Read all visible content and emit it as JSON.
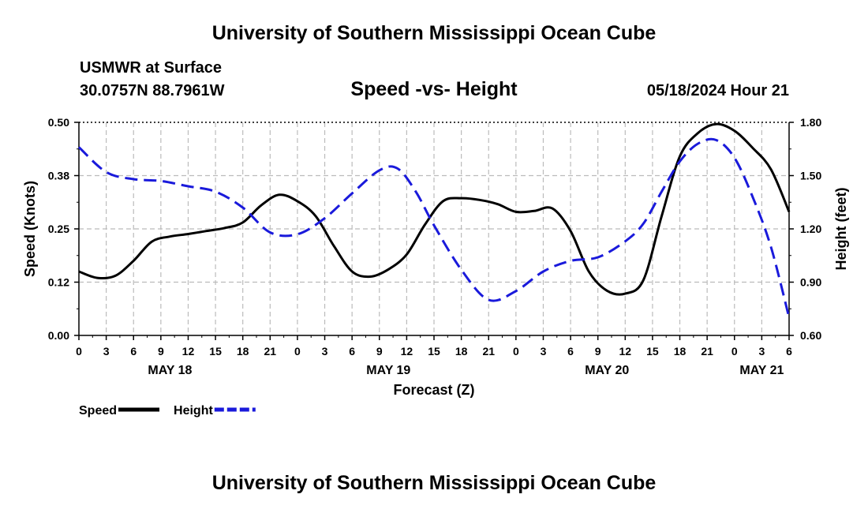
{
  "header": {
    "title": "University of Southern Mississippi Ocean Cube",
    "station_name": "USMWR at Surface",
    "station_coords": "30.0757N  88.7961W",
    "chart_title": "Speed -vs- Height",
    "timestamp": "05/18/2024 Hour 21"
  },
  "footer": {
    "title": "University of Southern Mississippi Ocean Cube"
  },
  "chart_data": {
    "type": "line",
    "title": "Speed -vs- Height",
    "xlabel": "Forecast (Z)",
    "x_hours": [
      0,
      3,
      6,
      9,
      12,
      15,
      18,
      21,
      24,
      27,
      30,
      33,
      36,
      39,
      42,
      45,
      48,
      51,
      54,
      57,
      60,
      63,
      66,
      69,
      72,
      75,
      78
    ],
    "x_tick_labels": [
      "0",
      "3",
      "6",
      "9",
      "12",
      "15",
      "18",
      "21",
      "0",
      "3",
      "6",
      "9",
      "12",
      "15",
      "18",
      "21",
      "0",
      "3",
      "6",
      "9",
      "12",
      "15",
      "18",
      "21",
      "0",
      "3",
      "6"
    ],
    "xlim": [
      0,
      78
    ],
    "date_labels": [
      {
        "text": "MAY 18",
        "hour": 10
      },
      {
        "text": "MAY 19",
        "hour": 34
      },
      {
        "text": "MAY 20",
        "hour": 58
      },
      {
        "text": "MAY 21",
        "hour": 75
      }
    ],
    "y_left": {
      "label": "Speed (Knots)",
      "lim": [
        0,
        0.5
      ],
      "ticks": [
        0,
        0.125,
        0.25,
        0.375,
        0.5
      ],
      "tick_labels": [
        "0.00",
        "0.12",
        "0.25",
        "0.38",
        "0.50"
      ]
    },
    "y_right": {
      "label": "Height (feet)",
      "lim": [
        0.6,
        1.8
      ],
      "ticks": [
        0.6,
        0.9,
        1.2,
        1.5,
        1.8
      ],
      "tick_labels": [
        "0.60",
        "0.90",
        "1.20",
        "1.50",
        "1.80"
      ]
    },
    "grid": true,
    "series": [
      {
        "name": "Speed",
        "axis": "left",
        "color": "#000000",
        "dash": "solid",
        "points": [
          [
            0,
            0.15
          ],
          [
            2,
            0.135
          ],
          [
            4,
            0.14
          ],
          [
            6,
            0.175
          ],
          [
            8,
            0.22
          ],
          [
            10,
            0.232
          ],
          [
            12,
            0.238
          ],
          [
            14,
            0.245
          ],
          [
            16,
            0.252
          ],
          [
            18,
            0.265
          ],
          [
            20,
            0.305
          ],
          [
            22,
            0.33
          ],
          [
            24,
            0.315
          ],
          [
            26,
            0.28
          ],
          [
            28,
            0.21
          ],
          [
            30,
            0.15
          ],
          [
            32,
            0.138
          ],
          [
            34,
            0.155
          ],
          [
            36,
            0.19
          ],
          [
            38,
            0.26
          ],
          [
            40,
            0.315
          ],
          [
            42,
            0.322
          ],
          [
            44,
            0.318
          ],
          [
            46,
            0.308
          ],
          [
            48,
            0.29
          ],
          [
            50,
            0.292
          ],
          [
            52,
            0.298
          ],
          [
            54,
            0.245
          ],
          [
            56,
            0.15
          ],
          [
            58,
            0.105
          ],
          [
            60,
            0.098
          ],
          [
            62,
            0.13
          ],
          [
            64,
            0.28
          ],
          [
            66,
            0.42
          ],
          [
            68,
            0.475
          ],
          [
            70,
            0.496
          ],
          [
            72,
            0.48
          ],
          [
            74,
            0.44
          ],
          [
            76,
            0.39
          ],
          [
            78,
            0.29
          ]
        ]
      },
      {
        "name": "Height",
        "axis": "right",
        "color": "#1a1adb",
        "dash": "dashed",
        "points": [
          [
            0,
            1.66
          ],
          [
            3,
            1.52
          ],
          [
            6,
            1.48
          ],
          [
            9,
            1.47
          ],
          [
            12,
            1.44
          ],
          [
            15,
            1.41
          ],
          [
            18,
            1.32
          ],
          [
            21,
            1.18
          ],
          [
            24,
            1.17
          ],
          [
            27,
            1.26
          ],
          [
            30,
            1.4
          ],
          [
            33,
            1.53
          ],
          [
            35,
            1.54
          ],
          [
            37,
            1.41
          ],
          [
            39,
            1.22
          ],
          [
            42,
            0.97
          ],
          [
            45,
            0.8
          ],
          [
            48,
            0.85
          ],
          [
            51,
            0.96
          ],
          [
            54,
            1.02
          ],
          [
            57,
            1.04
          ],
          [
            60,
            1.13
          ],
          [
            62,
            1.23
          ],
          [
            64,
            1.41
          ],
          [
            66,
            1.58
          ],
          [
            68,
            1.68
          ],
          [
            70,
            1.7
          ],
          [
            72,
            1.6
          ],
          [
            74,
            1.38
          ],
          [
            76,
            1.1
          ],
          [
            78,
            0.7
          ]
        ]
      }
    ]
  }
}
